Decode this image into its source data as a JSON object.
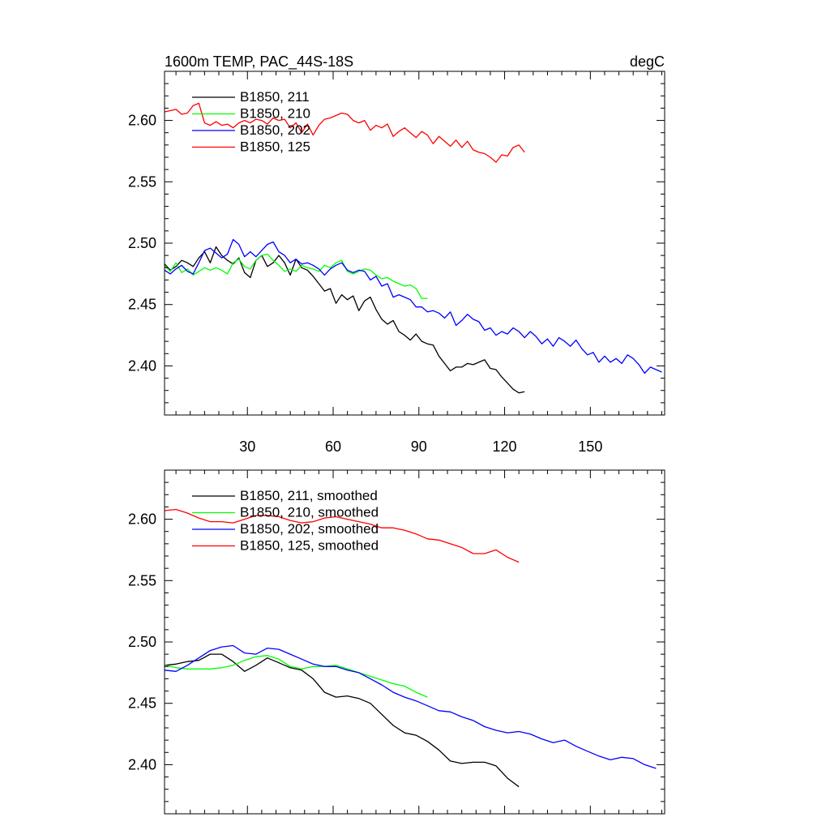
{
  "figure": {
    "title_left": "1600m TEMP, PAC_44S-18S",
    "title_right": "degC"
  },
  "chart_data": [
    {
      "type": "line",
      "panel": "top",
      "title": "1600m TEMP, PAC_44S-18S",
      "units": "degC",
      "xlim": [
        1,
        176
      ],
      "ylim": [
        2.36,
        2.64
      ],
      "xticks": [
        30,
        60,
        90,
        120,
        150
      ],
      "yticks": [
        2.4,
        2.45,
        2.5,
        2.55,
        2.6
      ],
      "series": [
        {
          "name": "B1850, 211",
          "color": "#000000",
          "x": [
            1,
            3,
            5,
            7,
            9,
            11,
            13,
            15,
            17,
            19,
            21,
            23,
            25,
            27,
            29,
            31,
            33,
            35,
            37,
            39,
            41,
            43,
            45,
            47,
            49,
            51,
            53,
            55,
            57,
            59,
            61,
            63,
            65,
            67,
            69,
            71,
            73,
            75,
            77,
            79,
            81,
            83,
            85,
            87,
            89,
            91,
            93,
            95,
            97,
            99,
            101,
            103,
            105,
            107,
            109,
            111,
            113,
            115,
            117,
            119,
            121,
            123,
            125,
            127
          ],
          "y": [
            2.483,
            2.478,
            2.481,
            2.486,
            2.484,
            2.481,
            2.488,
            2.493,
            2.484,
            2.497,
            2.49,
            2.486,
            2.483,
            2.488,
            2.476,
            2.472,
            2.486,
            2.49,
            2.481,
            2.484,
            2.49,
            2.484,
            2.474,
            2.487,
            2.48,
            2.478,
            2.473,
            2.467,
            2.461,
            2.463,
            2.451,
            2.458,
            2.454,
            2.457,
            2.445,
            2.453,
            2.456,
            2.446,
            2.438,
            2.434,
            2.437,
            2.428,
            2.425,
            2.421,
            2.426,
            2.42,
            2.418,
            2.417,
            2.408,
            2.402,
            2.396,
            2.399,
            2.399,
            2.402,
            2.401,
            2.403,
            2.405,
            2.398,
            2.397,
            2.391,
            2.386,
            2.381,
            2.378,
            2.379
          ]
        },
        {
          "name": "B1850, 210",
          "color": "#00ff00",
          "x": [
            1,
            3,
            5,
            7,
            9,
            11,
            13,
            15,
            17,
            19,
            21,
            23,
            25,
            27,
            29,
            31,
            33,
            35,
            37,
            39,
            41,
            43,
            45,
            47,
            49,
            51,
            53,
            55,
            57,
            59,
            61,
            63,
            65,
            67,
            69,
            71,
            73,
            75,
            77,
            79,
            81,
            83,
            85,
            87,
            89,
            91,
            93
          ],
          "y": [
            2.482,
            2.477,
            2.484,
            2.476,
            2.479,
            2.474,
            2.477,
            2.48,
            2.478,
            2.48,
            2.478,
            2.475,
            2.484,
            2.487,
            2.481,
            2.479,
            2.486,
            2.49,
            2.491,
            2.486,
            2.482,
            2.477,
            2.479,
            2.477,
            2.482,
            2.48,
            2.479,
            2.477,
            2.482,
            2.48,
            2.484,
            2.486,
            2.477,
            2.475,
            2.477,
            2.479,
            2.478,
            2.474,
            2.471,
            2.472,
            2.469,
            2.467,
            2.465,
            2.466,
            2.463,
            2.455,
            2.455
          ]
        },
        {
          "name": "B1850, 202",
          "color": "#0000ff",
          "x": [
            1,
            3,
            5,
            7,
            9,
            11,
            13,
            15,
            17,
            19,
            21,
            23,
            25,
            27,
            29,
            31,
            33,
            35,
            37,
            39,
            41,
            43,
            45,
            47,
            49,
            51,
            53,
            55,
            57,
            59,
            61,
            63,
            65,
            67,
            69,
            71,
            73,
            75,
            77,
            79,
            81,
            83,
            85,
            87,
            89,
            91,
            93,
            95,
            97,
            99,
            101,
            103,
            105,
            107,
            109,
            111,
            113,
            115,
            117,
            119,
            121,
            123,
            125,
            127,
            129,
            131,
            133,
            135,
            137,
            139,
            141,
            143,
            145,
            147,
            149,
            151,
            153,
            155,
            157,
            159,
            161,
            163,
            165,
            167,
            169,
            171,
            173,
            175
          ],
          "y": [
            2.478,
            2.475,
            2.479,
            2.482,
            2.477,
            2.475,
            2.484,
            2.494,
            2.496,
            2.492,
            2.488,
            2.491,
            2.503,
            2.499,
            2.489,
            2.493,
            2.489,
            2.494,
            2.499,
            2.501,
            2.493,
            2.49,
            2.484,
            2.487,
            2.483,
            2.484,
            2.482,
            2.479,
            2.474,
            2.479,
            2.482,
            2.484,
            2.478,
            2.476,
            2.478,
            2.477,
            2.47,
            2.473,
            2.465,
            2.467,
            2.456,
            2.458,
            2.456,
            2.454,
            2.448,
            2.448,
            2.444,
            2.445,
            2.443,
            2.439,
            2.444,
            2.433,
            2.437,
            2.442,
            2.438,
            2.436,
            2.429,
            2.431,
            2.425,
            2.428,
            2.426,
            2.431,
            2.428,
            2.423,
            2.428,
            2.424,
            2.418,
            2.422,
            2.416,
            2.423,
            2.42,
            2.416,
            2.421,
            2.414,
            2.409,
            2.411,
            2.403,
            2.408,
            2.403,
            2.406,
            2.402,
            2.409,
            2.406,
            2.401,
            2.394,
            2.399,
            2.397,
            2.395
          ]
        },
        {
          "name": "B1850, 125",
          "color": "#ff0000",
          "x": [
            1,
            3,
            5,
            7,
            9,
            11,
            13,
            15,
            17,
            19,
            21,
            23,
            25,
            27,
            29,
            31,
            33,
            35,
            37,
            39,
            41,
            43,
            45,
            47,
            49,
            51,
            53,
            55,
            57,
            59,
            61,
            63,
            65,
            67,
            69,
            71,
            73,
            75,
            77,
            79,
            81,
            83,
            85,
            87,
            89,
            91,
            93,
            95,
            97,
            99,
            101,
            103,
            105,
            107,
            109,
            111,
            113,
            115,
            117,
            119,
            121,
            123,
            125,
            127
          ],
          "y": [
            2.607,
            2.608,
            2.609,
            2.605,
            2.606,
            2.612,
            2.614,
            2.598,
            2.596,
            2.599,
            2.596,
            2.597,
            2.594,
            2.598,
            2.6,
            2.598,
            2.601,
            2.6,
            2.597,
            2.602,
            2.6,
            2.601,
            2.594,
            2.598,
            2.59,
            2.597,
            2.588,
            2.596,
            2.601,
            2.602,
            2.604,
            2.606,
            2.605,
            2.6,
            2.598,
            2.6,
            2.592,
            2.596,
            2.594,
            2.597,
            2.587,
            2.591,
            2.594,
            2.59,
            2.586,
            2.591,
            2.588,
            2.581,
            2.587,
            2.583,
            2.579,
            2.584,
            2.578,
            2.583,
            2.576,
            2.574,
            2.573,
            2.57,
            2.566,
            2.572,
            2.571,
            2.578,
            2.58,
            2.574
          ]
        }
      ]
    },
    {
      "type": "line",
      "panel": "bottom",
      "title": "",
      "xlim": [
        1,
        176
      ],
      "ylim": [
        2.36,
        2.64
      ],
      "yticks": [
        2.4,
        2.45,
        2.5,
        2.55,
        2.6
      ],
      "series": [
        {
          "name": "B1850, 211, smoothed",
          "color": "#000000",
          "x": [
            1,
            5,
            9,
            13,
            17,
            21,
            25,
            29,
            33,
            37,
            41,
            45,
            49,
            53,
            57,
            61,
            65,
            69,
            73,
            77,
            81,
            85,
            89,
            93,
            97,
            101,
            105,
            109,
            113,
            117,
            121,
            125
          ],
          "y": [
            2.481,
            2.482,
            2.484,
            2.485,
            2.49,
            2.49,
            2.484,
            2.476,
            2.481,
            2.487,
            2.483,
            2.479,
            2.477,
            2.47,
            2.459,
            2.455,
            2.456,
            2.454,
            2.45,
            2.441,
            2.432,
            2.426,
            2.424,
            2.419,
            2.412,
            2.403,
            2.401,
            2.402,
            2.402,
            2.399,
            2.389,
            2.382
          ]
        },
        {
          "name": "B1850, 210, smoothed",
          "color": "#00ff00",
          "x": [
            1,
            5,
            9,
            13,
            17,
            21,
            25,
            29,
            33,
            37,
            41,
            45,
            49,
            53,
            57,
            61,
            65,
            69,
            73,
            77,
            81,
            85,
            89,
            93
          ],
          "y": [
            2.481,
            2.479,
            2.478,
            2.478,
            2.478,
            2.479,
            2.481,
            2.485,
            2.488,
            2.489,
            2.486,
            2.48,
            2.478,
            2.48,
            2.48,
            2.481,
            2.478,
            2.475,
            2.472,
            2.469,
            2.466,
            2.464,
            2.459,
            2.455
          ]
        },
        {
          "name": "B1850, 202, smoothed",
          "color": "#0000ff",
          "x": [
            1,
            5,
            9,
            13,
            17,
            21,
            25,
            29,
            33,
            37,
            41,
            45,
            49,
            53,
            57,
            61,
            65,
            69,
            73,
            77,
            81,
            85,
            89,
            93,
            97,
            101,
            105,
            109,
            113,
            117,
            121,
            125,
            129,
            133,
            137,
            141,
            145,
            149,
            153,
            157,
            161,
            165,
            169,
            173
          ],
          "y": [
            2.477,
            2.476,
            2.481,
            2.487,
            2.493,
            2.496,
            2.497,
            2.491,
            2.49,
            2.495,
            2.494,
            2.49,
            2.486,
            2.482,
            2.48,
            2.48,
            2.477,
            2.475,
            2.47,
            2.465,
            2.459,
            2.455,
            2.452,
            2.448,
            2.444,
            2.443,
            2.439,
            2.436,
            2.431,
            2.428,
            2.426,
            2.427,
            2.425,
            2.421,
            2.418,
            2.42,
            2.415,
            2.411,
            2.407,
            2.404,
            2.406,
            2.405,
            2.4,
            2.397
          ]
        },
        {
          "name": "B1850, 125, smoothed",
          "color": "#ff0000",
          "x": [
            1,
            5,
            9,
            13,
            17,
            21,
            25,
            29,
            33,
            37,
            41,
            45,
            49,
            53,
            57,
            61,
            65,
            69,
            73,
            77,
            81,
            85,
            89,
            93,
            97,
            101,
            105,
            109,
            113,
            117,
            121,
            125
          ],
          "y": [
            2.607,
            2.608,
            2.605,
            2.601,
            2.598,
            2.598,
            2.597,
            2.6,
            2.603,
            2.603,
            2.602,
            2.599,
            2.597,
            2.598,
            2.601,
            2.602,
            2.6,
            2.598,
            2.596,
            2.593,
            2.593,
            2.591,
            2.588,
            2.584,
            2.583,
            2.58,
            2.577,
            2.572,
            2.572,
            2.575,
            2.569,
            2.565
          ]
        }
      ]
    }
  ]
}
